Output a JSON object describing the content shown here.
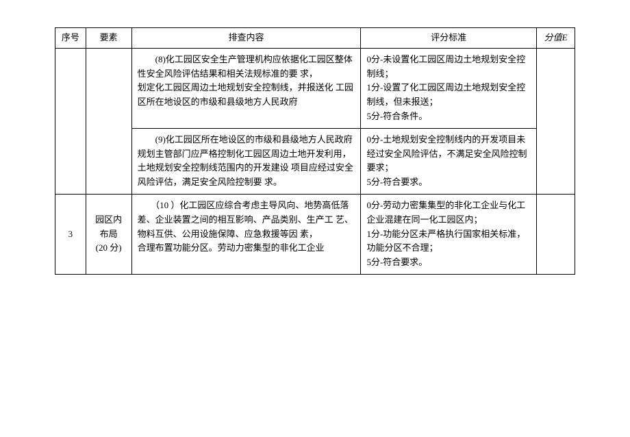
{
  "headers": {
    "seq": "序号",
    "element": "要素",
    "content": "排查内容",
    "criteria": "评分标准",
    "score": "分值E"
  },
  "rows": [
    {
      "seq": "",
      "element": "",
      "content": "　　(8)化工园区安全生产管理机构应依据化工园区整体性安全风险评估结果和相关法规标准的要 求，\n划定化工园区周边土地规划安全控制线，并报送化  工园区所在地设区的市级和县级地方人民政府",
      "criteria": "0分-未设置化工园区周边土地规划安全控制线；\n1分-设置了化工园区周边土地规划安全控制线，但未报送；\n5分-符合条件。",
      "score": ""
    },
    {
      "seq": "",
      "element": "",
      "content": "　　(9)化工园区所在地设区的市级和县级地方人民政府规划主管部门应严格控制化工园区周边土地开发利用，土地规划安全控制线范围内的开发建设  项目应经过安全风险评估，满足安全风险控制要  求。",
      "criteria": "0分-土地规划安全控制线内的开发项目未经过安全风险评估，不满足安全风险控制要求；\n5分-符合要求。",
      "score": ""
    },
    {
      "seq": "3",
      "element": "园区内布局\n(20 分)",
      "content": "　　（10 ）化工园区应综合考虑主导风向、地势高低落  差、企业装置之间的相互影响、产品类别、生产工  艺、物料互供、公用设施保障、应急救援等因  素，\n合理布置功能分区。劳动力密集型的非化工企业",
      "criteria": "0分-劳动力密集集型的非化工企业与化工企业混建在同一化工园区内；\n1分-功能分区未严格执行国家相关标准，功能分区不合理；\n5分-符合要求。",
      "score": ""
    }
  ]
}
